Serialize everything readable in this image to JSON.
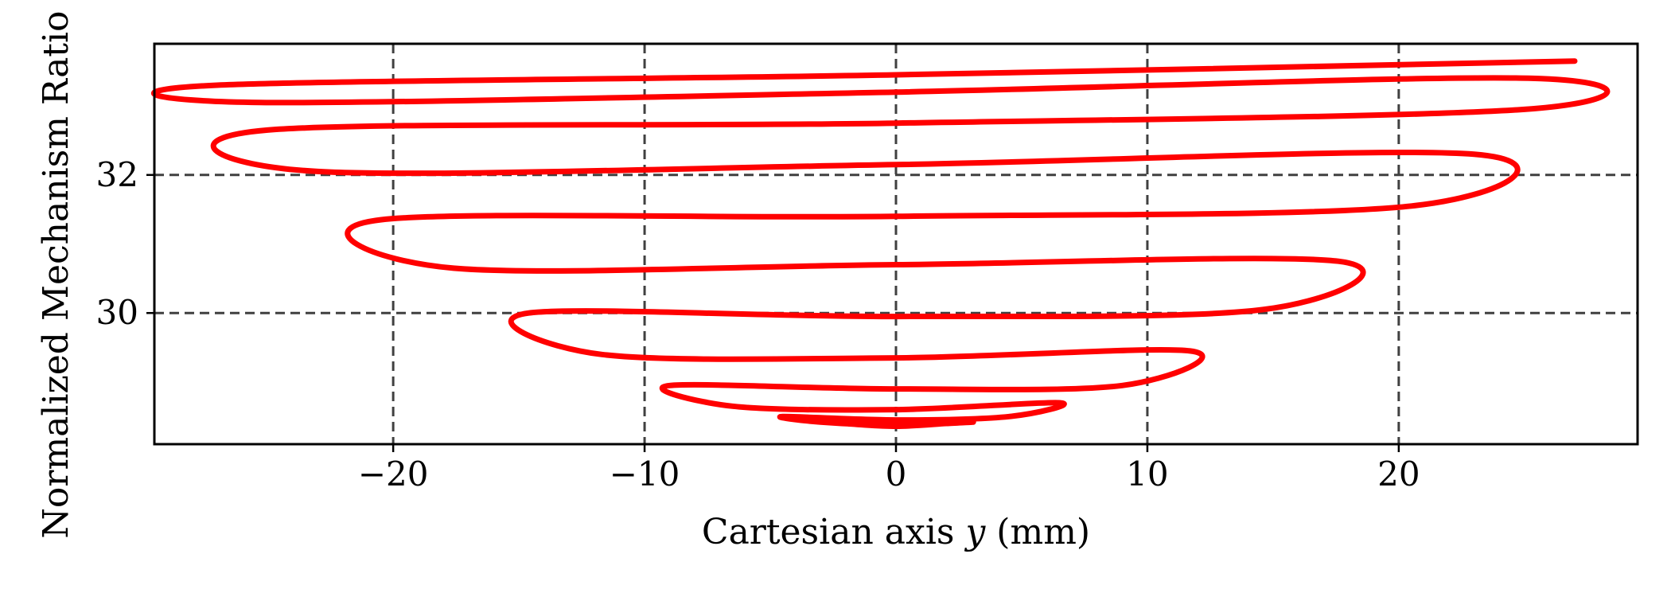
{
  "chart_data": {
    "type": "line",
    "xlabel": "Cartesian axis y (mm)",
    "xlabel_prefix": "Cartesian axis ",
    "xlabel_var": "y",
    "xlabel_unit": " (mm)",
    "ylabel": "Normalized Mechanism Ratio",
    "xlim": [
      -29.5,
      29.5
    ],
    "ylim": [
      28.1,
      33.9
    ],
    "xticks": [
      -20,
      -10,
      0,
      10,
      20
    ],
    "xtick_labels": [
      "−20",
      "−10",
      "0",
      "10",
      "20"
    ],
    "yticks": [
      30,
      32
    ],
    "ytick_labels": [
      "30",
      "32"
    ],
    "grid": true,
    "line_color": "#ff0000",
    "series": [
      {
        "x": [
          27.0,
          0.0,
          -27.0,
          -25.3,
          0.0,
          25.3,
          25.0,
          0.0,
          -25.0,
          -23.0,
          0.0,
          23.0,
          20.5,
          0.0,
          -20.5,
          -17.6,
          0.0,
          17.6,
          14.6,
          0.0,
          -14.6,
          -11.7,
          0.0,
          11.7,
          9.0,
          0.0,
          -9.0,
          -6.5,
          0.0,
          6.5,
          4.5,
          0.0,
          -4.5,
          -3.0,
          0.0,
          3.0,
          2.0,
          0.0,
          -2.0,
          0.0
        ],
        "y": [
          33.65,
          33.45,
          33.3,
          33.05,
          33.2,
          33.4,
          32.95,
          32.75,
          32.65,
          32.05,
          32.15,
          32.3,
          31.55,
          31.4,
          31.35,
          30.65,
          30.7,
          30.75,
          30.05,
          29.95,
          30.0,
          29.4,
          29.35,
          29.45,
          28.95,
          28.9,
          28.95,
          28.65,
          28.6,
          28.7,
          28.5,
          28.45,
          28.5,
          28.42,
          28.38,
          28.42,
          28.4,
          28.36,
          28.4,
          28.38
        ]
      }
    ]
  }
}
